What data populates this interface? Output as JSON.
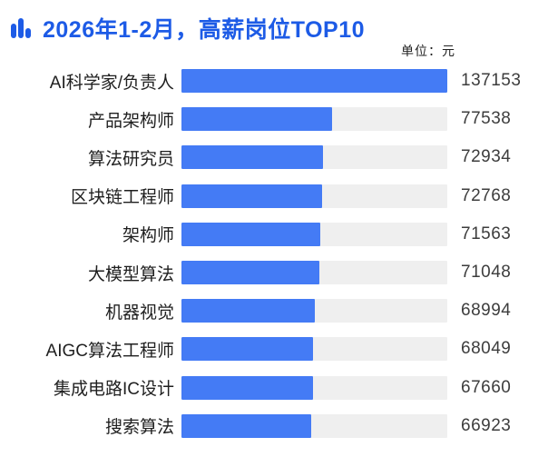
{
  "title": {
    "text": "2026年1-2月，高薪岗位TOP10",
    "icon": "bar-chart-icon"
  },
  "unit_label": "单位：元",
  "colors": {
    "title": "#1d5be6",
    "bar_fill": "#447bf5",
    "bar_track": "#efefef",
    "label_text": "#1f1f1f",
    "value_text": "#3d3d3d"
  },
  "chart_data": {
    "type": "bar",
    "orientation": "horizontal",
    "title": "2026年1-2月，高薪岗位TOP10",
    "unit": "元",
    "categories": [
      "AI科学家/负责人",
      "产品架构师",
      "算法研究员",
      "区块链工程师",
      "架构师",
      "大模型算法",
      "机器视觉",
      "AIGC算法工程师",
      "集成电路IC设计",
      "搜索算法"
    ],
    "values": [
      137153,
      77538,
      72934,
      72768,
      71563,
      71048,
      68994,
      68049,
      67660,
      66923
    ],
    "xlim": [
      0,
      137153
    ],
    "grid": false,
    "legend": "none",
    "value_labels": "right"
  }
}
